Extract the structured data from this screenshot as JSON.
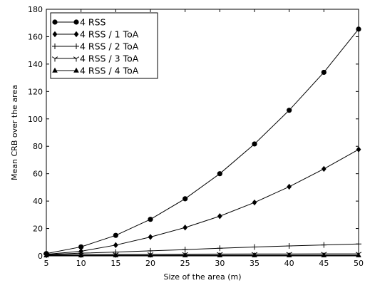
{
  "chart_data": {
    "type": "line",
    "title": "",
    "xlabel": "Size of the area (m)",
    "ylabel": "Mean CRB over the area",
    "xlim": [
      5,
      50
    ],
    "ylim": [
      0,
      180
    ],
    "xticks": [
      "5",
      "10",
      "15",
      "20",
      "25",
      "30",
      "35",
      "40",
      "45",
      "50"
    ],
    "yticks": [
      "0",
      "20",
      "40",
      "60",
      "80",
      "100",
      "120",
      "140",
      "160",
      "180"
    ],
    "grid": false,
    "legend_position": "top-left",
    "x": [
      5,
      10,
      15,
      20,
      25,
      30,
      35,
      40,
      45,
      50
    ],
    "series": [
      {
        "name": "4 RSS",
        "marker": "circle",
        "values": [
          1.7,
          6.6,
          15.0,
          26.7,
          41.7,
          60.0,
          81.7,
          106.3,
          134.0,
          165.5
        ]
      },
      {
        "name": "4 RSS / 1 ToA",
        "marker": "diamond",
        "values": [
          1.2,
          3.4,
          7.9,
          13.8,
          20.7,
          29.0,
          39.0,
          50.5,
          63.5,
          77.7
        ]
      },
      {
        "name": "4 RSS / 2 ToA",
        "marker": "plus",
        "values": [
          1.0,
          2.0,
          2.8,
          3.7,
          4.6,
          5.6,
          6.5,
          7.3,
          8.0,
          8.7
        ]
      },
      {
        "name": "4 RSS / 3 ToA",
        "marker": "tri-down",
        "values": [
          0.8,
          1.0,
          1.1,
          1.2,
          1.3,
          1.35,
          1.4,
          1.45,
          1.5,
          1.5
        ]
      },
      {
        "name": "4 RSS / 4 ToA",
        "marker": "triangle-up",
        "values": [
          0.4,
          0.4,
          0.45,
          0.45,
          0.5,
          0.5,
          0.5,
          0.5,
          0.5,
          0.5
        ]
      }
    ]
  }
}
